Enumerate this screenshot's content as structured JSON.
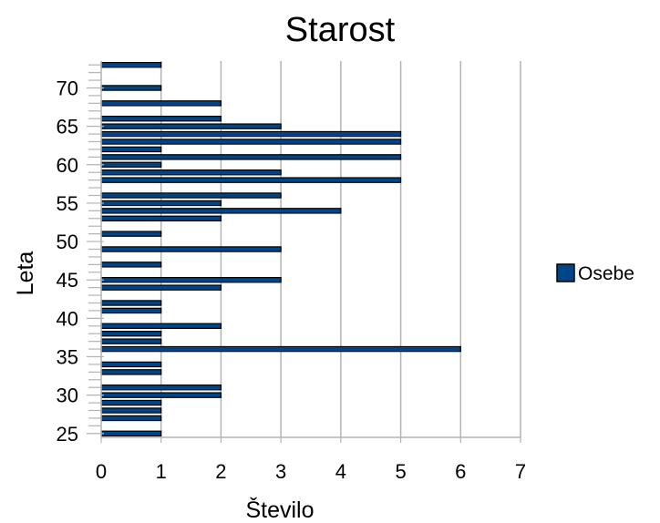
{
  "chart_data": {
    "type": "bar",
    "orientation": "horizontal",
    "title": "Starost",
    "xlabel": "Število",
    "ylabel": "Leta",
    "xlim": [
      0,
      7
    ],
    "ylim": [
      24.5,
      73.5
    ],
    "xticks": [
      0,
      1,
      2,
      3,
      4,
      5,
      6,
      7
    ],
    "yticks": [
      25,
      30,
      35,
      40,
      45,
      50,
      55,
      60,
      65,
      70
    ],
    "grid": "vertical",
    "legend": "right",
    "series": [
      {
        "name": "Osebe",
        "color": "#004586",
        "ages": [
          25,
          27,
          28,
          29,
          30,
          31,
          33,
          34,
          36,
          37,
          38,
          39,
          41,
          42,
          44,
          45,
          47,
          49,
          51,
          53,
          54,
          55,
          56,
          58,
          59,
          60,
          61,
          62,
          63,
          64,
          65,
          66,
          68,
          70,
          73
        ],
        "values": [
          1,
          1,
          1,
          1,
          2,
          2,
          1,
          1,
          6,
          1,
          1,
          2,
          1,
          1,
          2,
          3,
          1,
          3,
          1,
          2,
          4,
          2,
          3,
          5,
          3,
          1,
          5,
          1,
          5,
          5,
          3,
          2,
          2,
          1,
          1
        ]
      }
    ]
  }
}
